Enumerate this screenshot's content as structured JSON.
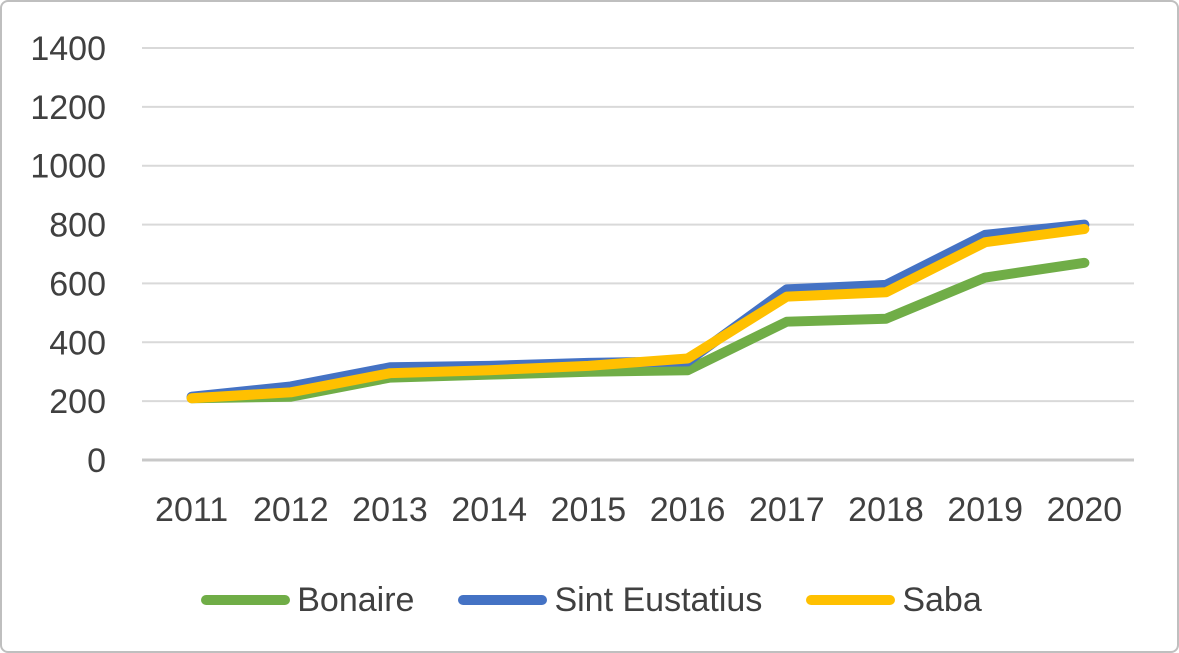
{
  "chart_data": {
    "type": "line",
    "title": "",
    "xlabel": "",
    "ylabel": "",
    "categories": [
      "2011",
      "2012",
      "2013",
      "2014",
      "2015",
      "2016",
      "2017",
      "2018",
      "2019",
      "2020"
    ],
    "series": [
      {
        "name": "Bonaire",
        "color": "#70AD47",
        "values": [
          210,
          215,
          280,
          290,
          300,
          305,
          470,
          480,
          620,
          670
        ]
      },
      {
        "name": "Sint Eustatius",
        "color": "#4472C4",
        "values": [
          215,
          250,
          315,
          320,
          330,
          335,
          580,
          595,
          765,
          800
        ]
      },
      {
        "name": "Saba",
        "color": "#FFC000",
        "values": [
          210,
          230,
          295,
          305,
          320,
          345,
          555,
          570,
          740,
          785
        ]
      }
    ],
    "ylim": [
      0,
      1400
    ],
    "ytick_step": 200,
    "ytick_labels": [
      "0",
      "200",
      "400",
      "600",
      "800",
      "1000",
      "1200",
      "1400"
    ],
    "grid": "horizontal",
    "legend_position": "bottom",
    "line_width": 10
  },
  "colors": {
    "background": "#FFFFFF",
    "border": "#BFBFBF",
    "gridline": "#D9D9D9",
    "zero_line": "#C8C8C8",
    "tick_label": "#404040"
  }
}
